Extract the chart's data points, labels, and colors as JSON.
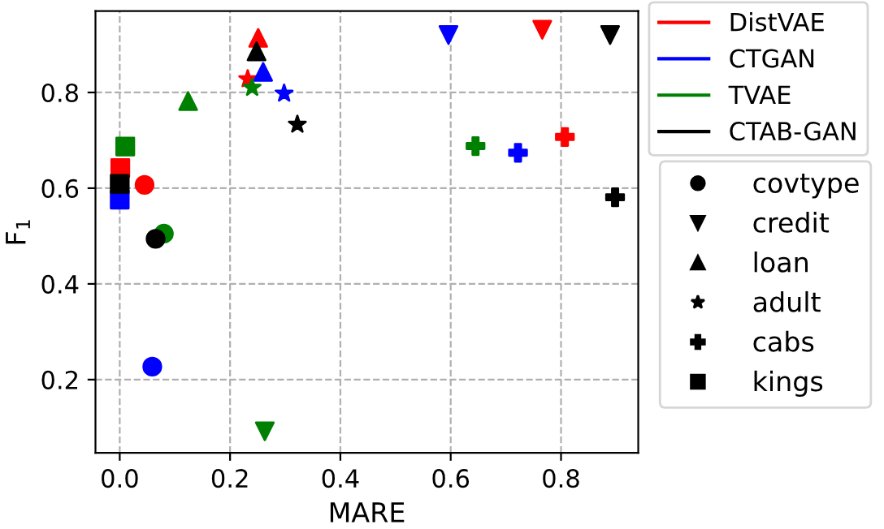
{
  "chart_data": {
    "type": "scatter",
    "xlabel": "MARE",
    "ylabel": "F$_{1}$",
    "xlim": [
      -0.044,
      0.94
    ],
    "ylim": [
      0.047,
      0.97
    ],
    "xticks": [
      {
        "value": 0.0,
        "label": "0.0"
      },
      0.2,
      0.4,
      0.6,
      0.8
    ],
    "yticks": [
      0.2,
      0.4,
      0.6,
      0.8
    ],
    "grid": true,
    "legend": "right",
    "series": [
      {
        "name": "DistVAE",
        "color": "#ff0000",
        "marker": [
          "circle",
          "triangle_down",
          "triangle",
          "star",
          "plus",
          "square"
        ],
        "x": [
          0.045,
          0.766,
          0.251,
          0.232,
          0.807,
          0.001
        ],
        "values": [
          0.607,
          0.931,
          0.914,
          0.828,
          0.707,
          0.642
        ]
      },
      {
        "name": "CTGAN",
        "color": "#0000ff",
        "marker": [
          "circle",
          "triangle_down",
          "triangle",
          "star",
          "plus",
          "square"
        ],
        "x": [
          0.059,
          0.596,
          0.26,
          0.298,
          0.722,
          0.0
        ],
        "values": [
          0.227,
          0.92,
          0.843,
          0.798,
          0.674,
          0.576
        ]
      },
      {
        "name": "TVAE",
        "color": "#008000",
        "marker": [
          "circle",
          "triangle_down",
          "triangle",
          "star",
          "plus",
          "square"
        ],
        "x": [
          0.08,
          0.263,
          0.124,
          0.24,
          0.645,
          0.01
        ],
        "values": [
          0.505,
          0.092,
          0.782,
          0.81,
          0.688,
          0.687
        ]
      },
      {
        "name": "CTAB-GAN",
        "color": "#000000",
        "marker": [
          "circle",
          "triangle_down",
          "triangle",
          "star",
          "plus",
          "square"
        ],
        "x": [
          0.065,
          0.889,
          0.248,
          0.322,
          0.898,
          0.0
        ],
        "values": [
          0.494,
          0.92,
          0.886,
          0.733,
          0.581,
          0.609
        ]
      },
      {
        "name": "covtype",
        "color": "#000000",
        "marker": "circle"
      },
      {
        "name": "credit",
        "color": "#000000",
        "marker": "triangle_down"
      },
      {
        "name": "loan",
        "color": "#000000",
        "marker": "triangle"
      },
      {
        "name": "adult",
        "color": "#000000",
        "marker": "star"
      },
      {
        "name": "cabs",
        "color": "#000000",
        "marker": "plus"
      },
      {
        "name": "kings",
        "color": "#000000",
        "marker": "square"
      }
    ]
  }
}
